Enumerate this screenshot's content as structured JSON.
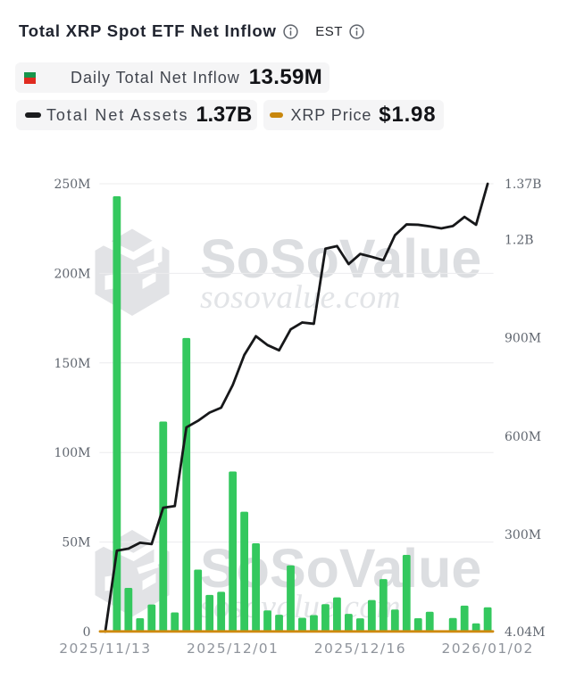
{
  "header": {
    "title": "Total XRP Spot ETF Net Inflow",
    "timezone_label": "EST",
    "title_info_icon": "info-circle",
    "est_info_icon": "info-circle"
  },
  "legend": {
    "daily_net_inflow": {
      "label": "Daily Total Net Inflow",
      "value": "13.59M",
      "swatch_colors": [
        "#17954b",
        "#e02b20"
      ]
    },
    "total_net_assets": {
      "label": "Total Net Assets",
      "value": "1.37B",
      "swatch_color": "#1b1c1e"
    },
    "xrp_price": {
      "label": "XRP Price",
      "value": "$1.98",
      "swatch_color": "#c8870d"
    }
  },
  "watermark": {
    "brand": "SoSoValue",
    "domain": "sosovalue.com"
  },
  "chart_data": {
    "type": "bar+line",
    "title": "Total XRP Spot ETF Net Inflow",
    "categories": [
      "2025/11/13",
      "2025/11/14",
      "2025/11/17",
      "2025/11/18",
      "2025/11/19",
      "2025/11/20",
      "2025/11/21",
      "2025/11/24",
      "2025/11/25",
      "2025/11/26",
      "2025/11/28",
      "2025/12/01",
      "2025/12/02",
      "2025/12/03",
      "2025/12/04",
      "2025/12/05",
      "2025/12/08",
      "2025/12/09",
      "2025/12/10",
      "2025/12/11",
      "2025/12/12",
      "2025/12/15",
      "2025/12/16",
      "2025/12/17",
      "2025/12/18",
      "2025/12/19",
      "2025/12/22",
      "2025/12/23",
      "2025/12/24",
      "2025/12/26",
      "2025/12/29",
      "2025/12/30",
      "2025/12/31",
      "2026/01/02"
    ],
    "series": [
      {
        "name": "Daily Total Net Inflow",
        "type": "bar",
        "axis": "left",
        "unit": "M",
        "color": "#34c85e",
        "values": [
          0,
          243,
          24.4,
          7.5,
          15.1,
          117.3,
          10.7,
          163.9,
          34.6,
          20.5,
          22.2,
          89.4,
          66.9,
          49.3,
          11.8,
          9.4,
          37,
          7.7,
          9.2,
          15.3,
          19.1,
          9.9,
          7.4,
          17.6,
          29.3,
          12.3,
          42.8,
          7.5,
          11.1,
          0,
          7.6,
          14.5,
          4.6,
          13.59
        ]
      },
      {
        "name": "Total Net Assets",
        "type": "line",
        "axis": "right",
        "unit": "M",
        "color": "#17181a",
        "values": [
          4.04,
          251,
          257,
          275,
          271,
          382,
          387,
          627,
          647,
          672,
          687,
          756,
          848,
          905,
          878,
          862,
          926,
          947,
          943,
          1172,
          1180,
          1125,
          1156,
          1147,
          1137,
          1213,
          1246,
          1245,
          1240,
          1234,
          1241,
          1269,
          1245,
          1370
        ]
      },
      {
        "name": "XRP Price",
        "type": "line",
        "axis": "hidden",
        "unit": "$",
        "color": "#cf8a10",
        "values": [
          1.98,
          1.98,
          1.98,
          1.98,
          1.98,
          1.98,
          1.98,
          1.98,
          1.98,
          1.98,
          1.98,
          1.98,
          1.98,
          1.98,
          1.98,
          1.98,
          1.98,
          1.98,
          1.98,
          1.98,
          1.98,
          1.98,
          1.98,
          1.98,
          1.98,
          1.98,
          1.98,
          1.98,
          1.98,
          1.98,
          1.98,
          1.98,
          1.98,
          1.98
        ]
      }
    ],
    "left_axis": {
      "min": 0,
      "max": 250,
      "unit": "M",
      "ticks": [
        {
          "v": 0,
          "label": "0"
        },
        {
          "v": 50,
          "label": "50M"
        },
        {
          "v": 100,
          "label": "100M"
        },
        {
          "v": 150,
          "label": "150M"
        },
        {
          "v": 200,
          "label": "200M"
        },
        {
          "v": 250,
          "label": "250M"
        }
      ]
    },
    "right_axis": {
      "min": 4.04,
      "max": 1370,
      "unit": "M",
      "ticks": [
        {
          "v": 1370,
          "label": "1.37B"
        },
        {
          "v": 1200,
          "label": "1.2B"
        },
        {
          "v": 900,
          "label": "900M"
        },
        {
          "v": 600,
          "label": "600M"
        },
        {
          "v": 300,
          "label": "300M"
        },
        {
          "v": 4.04,
          "label": "4.04M"
        }
      ]
    },
    "x_ticks": [
      {
        "index": 0,
        "label": "2025/11/13"
      },
      {
        "index": 11,
        "label": "2025/12/01"
      },
      {
        "index": 22,
        "label": "2025/12/16"
      },
      {
        "index": 33,
        "label": "2026/01/02"
      }
    ],
    "grid": true,
    "legend_position": "top"
  },
  "style": {
    "bar_color": "#34c85e",
    "assets_line_color": "#17181a",
    "price_line_color": "#cf8a10",
    "grid_color": "#ececee",
    "watermark_color": "#e2e3e6"
  }
}
